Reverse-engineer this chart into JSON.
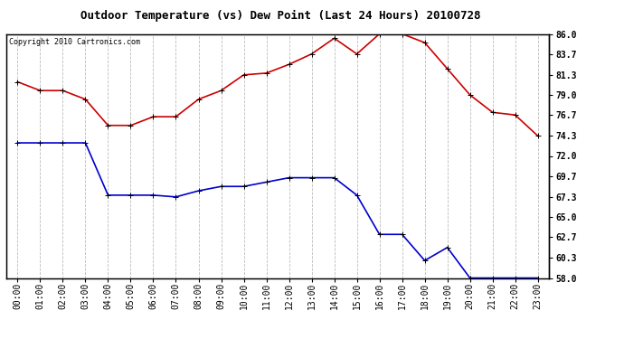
{
  "title": "Outdoor Temperature (vs) Dew Point (Last 24 Hours) 20100728",
  "copyright": "Copyright 2010 Cartronics.com",
  "hours": [
    "00:00",
    "01:00",
    "02:00",
    "03:00",
    "04:00",
    "05:00",
    "06:00",
    "07:00",
    "08:00",
    "09:00",
    "10:00",
    "11:00",
    "12:00",
    "13:00",
    "14:00",
    "15:00",
    "16:00",
    "17:00",
    "18:00",
    "19:00",
    "20:00",
    "21:00",
    "22:00",
    "23:00"
  ],
  "temp": [
    80.5,
    79.5,
    79.5,
    78.5,
    75.5,
    75.5,
    76.5,
    76.5,
    78.5,
    79.5,
    81.3,
    81.5,
    82.5,
    83.7,
    85.5,
    83.7,
    86.0,
    86.0,
    85.0,
    82.0,
    79.0,
    77.0,
    76.7,
    74.3
  ],
  "dew": [
    73.5,
    73.5,
    73.5,
    73.5,
    67.5,
    67.5,
    67.5,
    67.3,
    68.0,
    68.5,
    68.5,
    69.0,
    69.5,
    69.5,
    69.5,
    67.5,
    63.0,
    63.0,
    60.0,
    61.5,
    58.0,
    58.0,
    58.0,
    58.0
  ],
  "temp_color": "#cc0000",
  "dew_color": "#0000cc",
  "bg_color": "#ffffff",
  "grid_color": "#bbbbbb",
  "plot_bg": "#ffffff",
  "ylim": [
    58.0,
    86.0
  ],
  "yticks_right": [
    86.0,
    83.7,
    81.3,
    79.0,
    76.7,
    74.3,
    72.0,
    69.7,
    67.3,
    65.0,
    62.7,
    60.3,
    58.0
  ],
  "marker": "+",
  "marker_size": 5,
  "linewidth": 1.2,
  "title_fontsize": 9,
  "tick_fontsize": 7,
  "copyright_fontsize": 6
}
